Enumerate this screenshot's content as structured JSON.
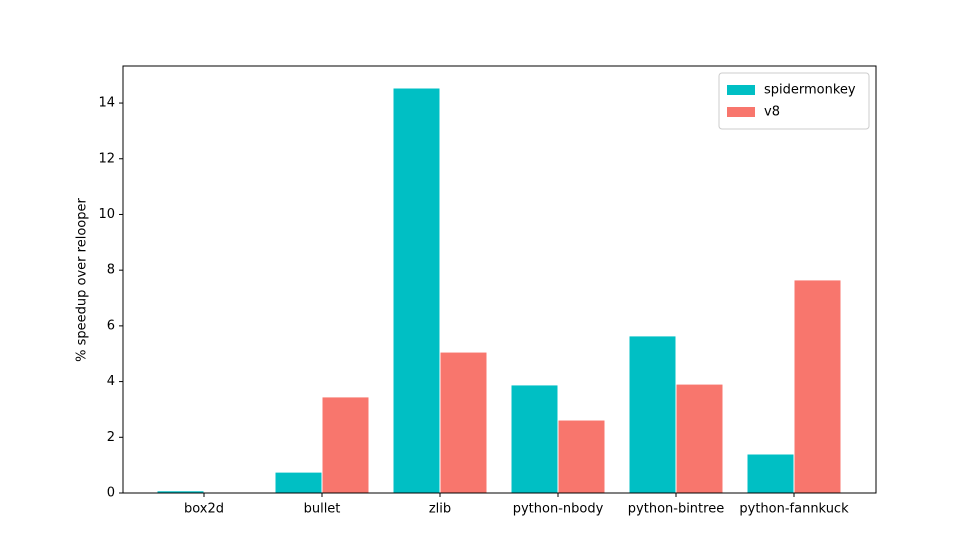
{
  "chart_data": {
    "type": "bar",
    "y_label": "% speedup over relooper",
    "categories": [
      "box2d",
      "bullet",
      "zlib",
      "python-nbody",
      "python-bintree",
      "python-fannkuck"
    ],
    "series": [
      {
        "name": "spidermonkey",
        "color": "#00bfc4",
        "values": [
          0.08,
          0.75,
          14.54,
          3.88,
          5.64,
          1.4
        ]
      },
      {
        "name": "v8",
        "color": "#f8766d",
        "values": [
          0,
          3.45,
          5.06,
          2.62,
          3.91,
          7.65
        ]
      }
    ],
    "ylim": [
      0,
      15.33
    ],
    "yticks": [
      0,
      2,
      4,
      6,
      8,
      10,
      12,
      14
    ],
    "legend": "upper right"
  }
}
